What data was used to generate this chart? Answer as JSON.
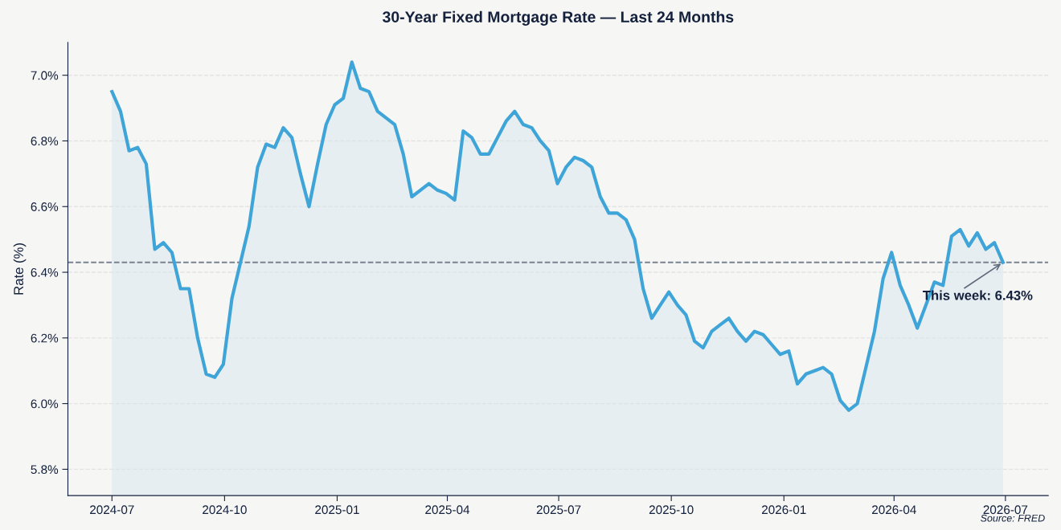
{
  "chart_data": {
    "type": "area",
    "title": "30-Year Fixed Mortgage Rate — Last 24 Months",
    "ylabel": "Rate (%)",
    "x": [
      "2024-07-01",
      "2024-07-08",
      "2024-07-15",
      "2024-07-22",
      "2024-07-29",
      "2024-08-05",
      "2024-08-12",
      "2024-08-19",
      "2024-08-26",
      "2024-09-02",
      "2024-09-09",
      "2024-09-16",
      "2024-09-23",
      "2024-09-30",
      "2024-10-07",
      "2024-10-14",
      "2024-10-21",
      "2024-10-28",
      "2024-11-04",
      "2024-11-11",
      "2024-11-18",
      "2024-11-25",
      "2024-12-02",
      "2024-12-09",
      "2024-12-16",
      "2024-12-23",
      "2024-12-30",
      "2025-01-06",
      "2025-01-13",
      "2025-01-20",
      "2025-01-27",
      "2025-02-03",
      "2025-02-10",
      "2025-02-17",
      "2025-02-24",
      "2025-03-03",
      "2025-03-10",
      "2025-03-17",
      "2025-03-24",
      "2025-03-31",
      "2025-04-07",
      "2025-04-14",
      "2025-04-21",
      "2025-04-28",
      "2025-05-05",
      "2025-05-12",
      "2025-05-19",
      "2025-05-26",
      "2025-06-02",
      "2025-06-09",
      "2025-06-16",
      "2025-06-23",
      "2025-06-30",
      "2025-07-07",
      "2025-07-14",
      "2025-07-21",
      "2025-07-28",
      "2025-08-04",
      "2025-08-11",
      "2025-08-18",
      "2025-08-25",
      "2025-09-01",
      "2025-09-08",
      "2025-09-15",
      "2025-09-22",
      "2025-09-29",
      "2025-10-06",
      "2025-10-13",
      "2025-10-20",
      "2025-10-27",
      "2025-11-03",
      "2025-11-10",
      "2025-11-17",
      "2025-11-24",
      "2025-12-01",
      "2025-12-08",
      "2025-12-15",
      "2025-12-22",
      "2025-12-29",
      "2026-01-05",
      "2026-01-12",
      "2026-01-19",
      "2026-01-26",
      "2026-02-02",
      "2026-02-09",
      "2026-02-16",
      "2026-02-23",
      "2026-03-02",
      "2026-03-09",
      "2026-03-16",
      "2026-03-23",
      "2026-03-30",
      "2026-04-06",
      "2026-04-13",
      "2026-04-20",
      "2026-04-27",
      "2026-05-04",
      "2026-05-11",
      "2026-05-18",
      "2026-05-25",
      "2026-06-01",
      "2026-06-08",
      "2026-06-15",
      "2026-06-22",
      "2026-06-29"
    ],
    "series": [
      {
        "color": "#3fa5d8",
        "values": [
          6.95,
          6.89,
          6.77,
          6.78,
          6.73,
          6.47,
          6.49,
          6.46,
          6.35,
          6.35,
          6.2,
          6.09,
          6.08,
          6.12,
          6.32,
          6.43,
          6.54,
          6.72,
          6.79,
          6.78,
          6.84,
          6.81,
          6.7,
          6.6,
          6.73,
          6.85,
          6.91,
          6.93,
          7.04,
          6.96,
          6.95,
          6.89,
          6.87,
          6.85,
          6.76,
          6.63,
          6.65,
          6.67,
          6.65,
          6.64,
          6.62,
          6.83,
          6.81,
          6.76,
          6.76,
          6.81,
          6.86,
          6.89,
          6.85,
          6.84,
          6.8,
          6.77,
          6.67,
          6.72,
          6.75,
          6.74,
          6.72,
          6.63,
          6.58,
          6.58,
          6.56,
          6.5,
          6.35,
          6.26,
          6.3,
          6.34,
          6.3,
          6.27,
          6.19,
          6.17,
          6.22,
          6.24,
          6.26,
          6.22,
          6.19,
          6.22,
          6.21,
          6.18,
          6.15,
          6.16,
          6.06,
          6.09,
          6.1,
          6.11,
          6.09,
          6.01,
          5.98,
          6.0,
          6.11,
          6.22,
          6.38,
          6.46,
          6.36,
          6.3,
          6.23,
          6.3,
          6.37,
          6.36,
          6.51,
          6.53,
          6.48,
          6.52,
          6.47,
          6.49,
          6.43
        ]
      }
    ],
    "xlim": [
      "2024-05-26",
      "2026-08-05"
    ],
    "xticks": [
      {
        "value": "2024-07-01",
        "label": "2024-07"
      },
      {
        "value": "2024-10-01",
        "label": "2024-10"
      },
      {
        "value": "2025-01-01",
        "label": "2025-01"
      },
      {
        "value": "2025-04-01",
        "label": "2025-04"
      },
      {
        "value": "2025-07-01",
        "label": "2025-07"
      },
      {
        "value": "2025-10-01",
        "label": "2025-10"
      },
      {
        "value": "2026-01-01",
        "label": "2026-01"
      },
      {
        "value": "2026-04-01",
        "label": "2026-04"
      },
      {
        "value": "2026-07-01",
        "label": "2026-07"
      }
    ],
    "ylim": [
      5.72,
      7.1
    ],
    "yticks": [
      {
        "value": 5.8,
        "label": "5.8%"
      },
      {
        "value": 6.0,
        "label": "6.0%"
      },
      {
        "value": 6.2,
        "label": "6.2%"
      },
      {
        "value": 6.4,
        "label": "6.4%"
      },
      {
        "value": 6.6,
        "label": "6.6%"
      },
      {
        "value": 6.8,
        "label": "6.8%"
      },
      {
        "value": 7.0,
        "label": "7.0%"
      }
    ],
    "grid": "y",
    "line_style": "solid",
    "ref_lines": [
      {
        "axis": "y",
        "value": 6.43,
        "color": "#7a8290",
        "line_style": "dashed"
      }
    ],
    "annotations": [
      {
        "text": "This week: 6.43%",
        "x": "2026-06-29",
        "y": 6.43
      },
      "Source: FRED"
    ]
  }
}
